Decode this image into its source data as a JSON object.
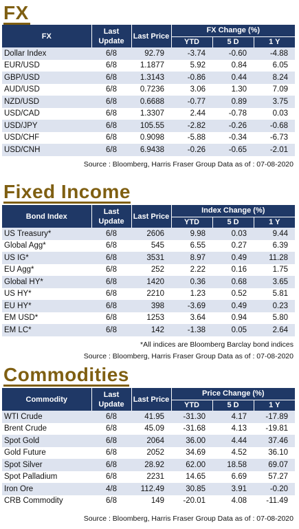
{
  "fx": {
    "title": "FX",
    "headers": {
      "index": "FX",
      "last_update": "Last Update",
      "last_price": "Last Price",
      "change": "FX Change (%)",
      "ytd": "YTD",
      "d5": "5 D",
      "y1": "1 Y"
    },
    "rows": [
      {
        "name": "Dollar Index",
        "date": "6/8",
        "price": "92.79",
        "ytd": "-3.74",
        "d5": "-0.60",
        "y1": "-4.88"
      },
      {
        "name": "EUR/USD",
        "date": "6/8",
        "price": "1.1877",
        "ytd": "5.92",
        "d5": "0.84",
        "y1": "6.05"
      },
      {
        "name": "GBP/USD",
        "date": "6/8",
        "price": "1.3143",
        "ytd": "-0.86",
        "d5": "0.44",
        "y1": "8.24"
      },
      {
        "name": "AUD/USD",
        "date": "6/8",
        "price": "0.7236",
        "ytd": "3.06",
        "d5": "1.30",
        "y1": "7.09"
      },
      {
        "name": "NZD/USD",
        "date": "6/8",
        "price": "0.6688",
        "ytd": "-0.77",
        "d5": "0.89",
        "y1": "3.75"
      },
      {
        "name": "USD/CAD",
        "date": "6/8",
        "price": "1.3307",
        "ytd": "2.44",
        "d5": "-0.78",
        "y1": "0.03"
      },
      {
        "name": "USD/JPY",
        "date": "6/8",
        "price": "105.55",
        "ytd": "-2.82",
        "d5": "-0.26",
        "y1": "-0.68"
      },
      {
        "name": "USD/CHF",
        "date": "6/8",
        "price": "0.9098",
        "ytd": "-5.88",
        "d5": "-0.34",
        "y1": "-6.73"
      },
      {
        "name": "USD/CNH",
        "date": "6/8",
        "price": "6.9438",
        "ytd": "-0.26",
        "d5": "-0.65",
        "y1": "-2.01"
      }
    ],
    "source": "Source : Bloomberg, Harris Fraser Group Data as of : 07-08-2020"
  },
  "fixed_income": {
    "title": "Fixed Income",
    "headers": {
      "index": "Bond Index",
      "last_update": "Last Update",
      "last_price": "Last Price",
      "change": "Index Change (%)",
      "ytd": "YTD",
      "d5": "5 D",
      "y1": "1 Y"
    },
    "rows": [
      {
        "name": "US Treasury*",
        "date": "6/8",
        "price": "2606",
        "ytd": "9.98",
        "d5": "0.03",
        "y1": "9.44"
      },
      {
        "name": "Global Agg*",
        "date": "6/8",
        "price": "545",
        "ytd": "6.55",
        "d5": "0.27",
        "y1": "6.39"
      },
      {
        "name": "US IG*",
        "date": "6/8",
        "price": "3531",
        "ytd": "8.97",
        "d5": "0.49",
        "y1": "11.28"
      },
      {
        "name": "EU Agg*",
        "date": "6/8",
        "price": "252",
        "ytd": "2.22",
        "d5": "0.16",
        "y1": "1.75"
      },
      {
        "name": "Global HY*",
        "date": "6/8",
        "price": "1420",
        "ytd": "0.36",
        "d5": "0.68",
        "y1": "3.65"
      },
      {
        "name": "US HY*",
        "date": "6/8",
        "price": "2210",
        "ytd": "1.23",
        "d5": "0.52",
        "y1": "5.81"
      },
      {
        "name": "EU HY*",
        "date": "6/8",
        "price": "398",
        "ytd": "-3.69",
        "d5": "0.49",
        "y1": "0.23"
      },
      {
        "name": "EM USD*",
        "date": "6/8",
        "price": "1253",
        "ytd": "3.64",
        "d5": "0.94",
        "y1": "5.80"
      },
      {
        "name": "EM LC*",
        "date": "6/8",
        "price": "142",
        "ytd": "-1.38",
        "d5": "0.05",
        "y1": "2.64"
      }
    ],
    "note": "*All indices are Bloomberg Barclay bond indices",
    "source": "Source : Bloomberg, Harris Fraser Group Data as of : 07-08-2020"
  },
  "commodities": {
    "title": "Commodities",
    "headers": {
      "index": "Commodity",
      "last_update": "Last Update",
      "last_price": "Last Price",
      "change": "Price Change (%)",
      "ytd": "YTD",
      "d5": "5 D",
      "y1": "1 Y"
    },
    "rows": [
      {
        "name": "WTI Crude",
        "date": "6/8",
        "price": "41.95",
        "ytd": "-31.30",
        "d5": "4.17",
        "y1": "-17.89"
      },
      {
        "name": "Brent Crude",
        "date": "6/8",
        "price": "45.09",
        "ytd": "-31.68",
        "d5": "4.13",
        "y1": "-19.81"
      },
      {
        "name": "Spot Gold",
        "date": "6/8",
        "price": "2064",
        "ytd": "36.00",
        "d5": "4.44",
        "y1": "37.46"
      },
      {
        "name": "Gold Future",
        "date": "6/8",
        "price": "2052",
        "ytd": "34.69",
        "d5": "4.52",
        "y1": "36.10"
      },
      {
        "name": "Spot Silver",
        "date": "6/8",
        "price": "28.92",
        "ytd": "62.00",
        "d5": "18.58",
        "y1": "69.07"
      },
      {
        "name": "Spot Palladium",
        "date": "6/8",
        "price": "2231",
        "ytd": "14.65",
        "d5": "6.69",
        "y1": "57.27"
      },
      {
        "name": "Iron Ore",
        "date": "4/8",
        "price": "112.49",
        "ytd": "30.85",
        "d5": "3.91",
        "y1": "-0.20"
      },
      {
        "name": "CRB Commodity",
        "date": "6/8",
        "price": "149",
        "ytd": "-20.01",
        "d5": "4.08",
        "y1": "-11.49"
      }
    ],
    "source": "Source : Bloomberg, Harris Fraser Group Data as of : 07-08-2020"
  },
  "colors": {
    "header_bg": "#1f3866",
    "title": "#7f5f12",
    "row_shade": "#dde3ef"
  }
}
